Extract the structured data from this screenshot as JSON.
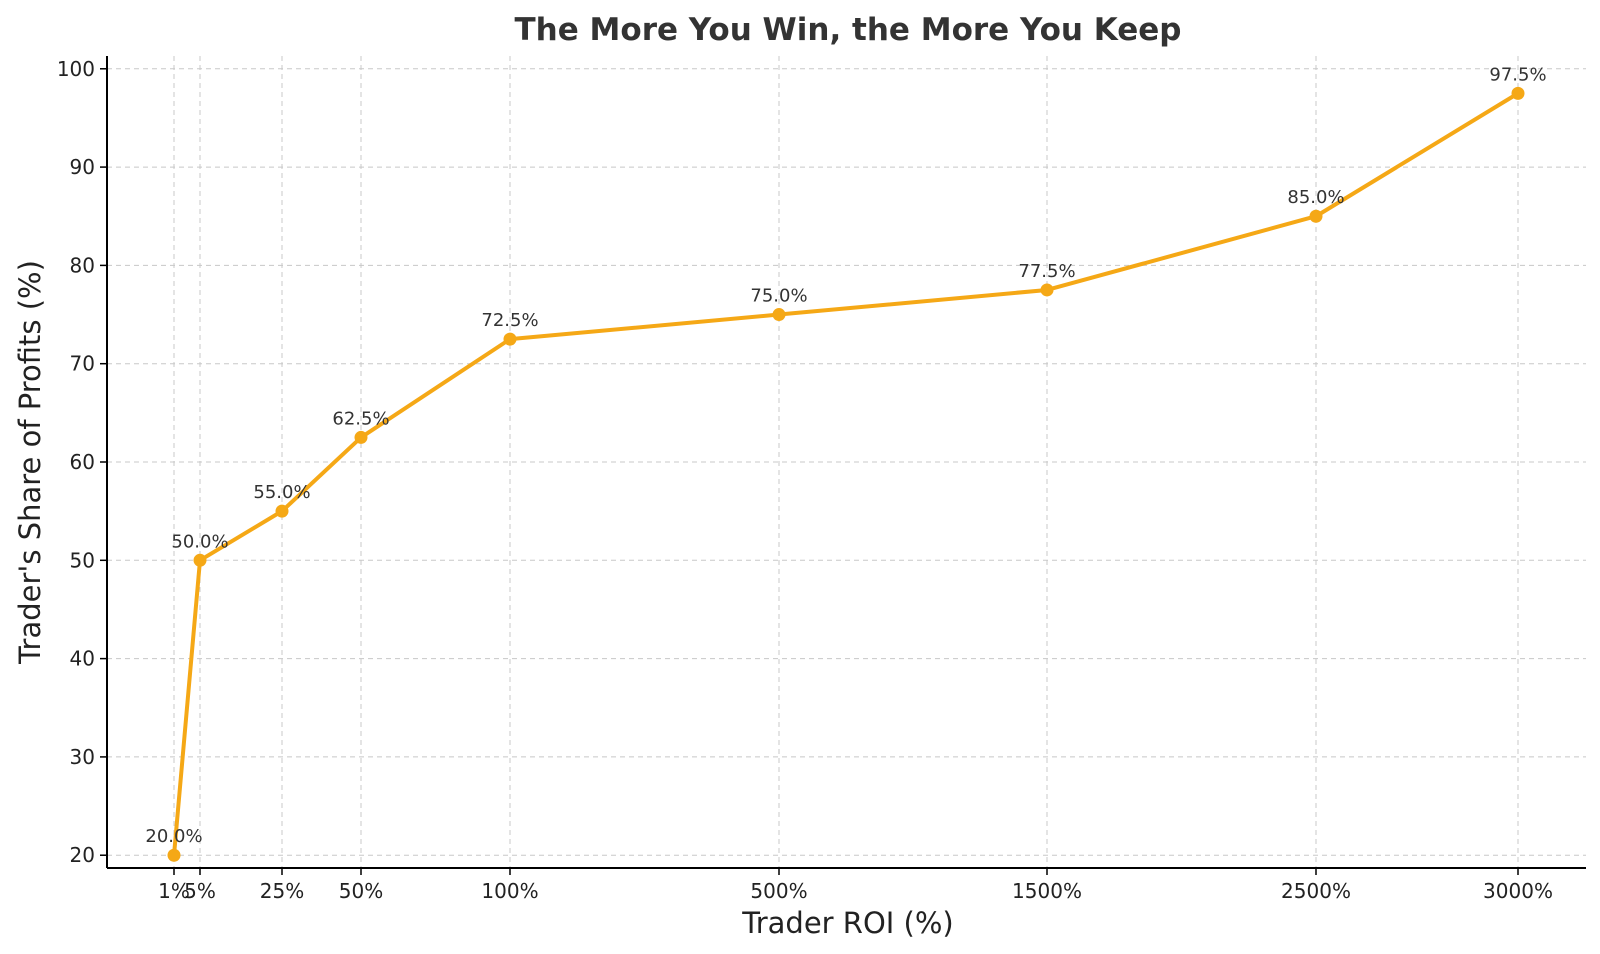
{
  "chart_data": {
    "type": "line",
    "title": "The More You Win, the More You Keep",
    "xlabel": "Trader ROI (%)",
    "ylabel": "Trader's Share of Profits (%)",
    "x": [
      1,
      5,
      25,
      50,
      100,
      500,
      1500,
      2500,
      3000
    ],
    "x_tick_labels": [
      "1%",
      "5%",
      "25%",
      "50%",
      "100%",
      "500%",
      "1500%",
      "2500%",
      "3000%"
    ],
    "series": [
      {
        "values": [
          20.0,
          50.0,
          55.0,
          62.5,
          72.5,
          75.0,
          77.5,
          85.0,
          97.5
        ],
        "data_labels": [
          "20.0%",
          "50.0%",
          "55.0%",
          "62.5%",
          "72.5%",
          "75.0%",
          "77.5%",
          "85.0%",
          "97.5%"
        ],
        "color": "#F5A816"
      }
    ],
    "y_ticks": [
      20,
      30,
      40,
      50,
      60,
      70,
      80,
      90,
      100
    ],
    "ylim": [
      18.7,
      101.3
    ],
    "grid": true,
    "legend": "none"
  }
}
